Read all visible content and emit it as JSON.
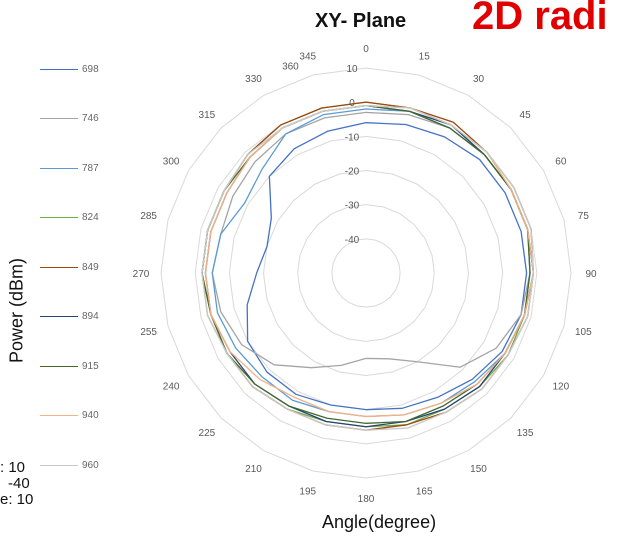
{
  "banner": "2D radi",
  "chart_data": {
    "type": "polar-line",
    "title": "XY- Plane",
    "xlabel": "Angle(degree)",
    "ylabel": "Power (dBm)",
    "angle_ticks": [
      "0",
      "15",
      "30",
      "45",
      "60",
      "75",
      "90",
      "105",
      "120",
      "135",
      "150",
      "165",
      "180",
      "195",
      "210",
      "225",
      "240",
      "255",
      "270",
      "285",
      "300",
      "315",
      "330",
      "345",
      "360"
    ],
    "radial_ticks": [
      "10",
      "0",
      "-10",
      "-20",
      "-30",
      "-40"
    ],
    "rlim": [
      -50,
      10
    ],
    "angles": [
      0,
      15,
      30,
      45,
      60,
      75,
      90,
      105,
      120,
      135,
      150,
      165,
      180,
      195,
      210,
      225,
      240,
      255,
      270,
      285,
      300,
      315,
      330,
      345
    ],
    "series": [
      {
        "name": "698",
        "color": "#4472c4",
        "values": [
          -6,
          -5,
          -4,
          -3,
          -3,
          -3,
          -3,
          -3,
          -4,
          -6,
          -8,
          -9,
          -10,
          -10,
          -9,
          -9,
          -10,
          -14,
          -18,
          -20,
          -18,
          -10,
          -8,
          -7
        ]
      },
      {
        "name": "746",
        "color": "#a5a5a5",
        "values": [
          -3,
          -2,
          -1,
          -1,
          -1,
          -1,
          -2,
          -3,
          -6,
          -11,
          -20,
          -24,
          -25,
          -22,
          -18,
          -12,
          -8,
          -6,
          -5,
          -6,
          -5,
          -4,
          -3,
          -3
        ]
      },
      {
        "name": "787",
        "color": "#5b9bd5",
        "values": [
          -2,
          -1,
          -1,
          -1,
          -1,
          -1,
          -2,
          -2,
          -3,
          -5,
          -6,
          -7,
          -8,
          -8,
          -7,
          -7,
          -6,
          -5,
          -5,
          -6,
          -9,
          -7,
          -3,
          -2
        ]
      },
      {
        "name": "824",
        "color": "#70ad47",
        "values": [
          0,
          0,
          0,
          -1,
          -1,
          -1,
          -1,
          -2,
          -2,
          -3,
          -4,
          -4,
          -5,
          -5,
          -4,
          -3,
          -3,
          -2,
          -2,
          -2,
          -2,
          -1,
          0,
          0
        ]
      },
      {
        "name": "849",
        "color": "#9e480e",
        "values": [
          0,
          0,
          1,
          0,
          0,
          0,
          -1,
          -1,
          -2,
          -2,
          -3,
          -4,
          -4,
          -4,
          -4,
          -3,
          -3,
          -3,
          -2,
          -2,
          -2,
          -1,
          0,
          0
        ]
      },
      {
        "name": "894",
        "color": "#264478",
        "values": [
          -1,
          -1,
          0,
          -1,
          -1,
          -1,
          -1,
          -2,
          -3,
          -3,
          -4,
          -5,
          -5,
          -5,
          -5,
          -4,
          -4,
          -3,
          -3,
          -3,
          -3,
          -2,
          -1,
          -1
        ]
      },
      {
        "name": "915",
        "color": "#43682b",
        "values": [
          -1,
          -1,
          -1,
          -1,
          -1,
          -1,
          -2,
          -2,
          -3,
          -4,
          -5,
          -5,
          -6,
          -6,
          -5,
          -4,
          -3,
          -3,
          -2,
          -2,
          -2,
          -2,
          -1,
          -1
        ]
      },
      {
        "name": "940",
        "color": "#f4b183",
        "values": [
          -1,
          0,
          0,
          0,
          -1,
          -1,
          -1,
          -2,
          -3,
          -4,
          -6,
          -7,
          -8,
          -8,
          -8,
          -6,
          -4,
          -3,
          -3,
          -3,
          -3,
          -2,
          -1,
          -1
        ]
      },
      {
        "name": "960",
        "color": "#c9c9c9",
        "values": [
          -1,
          0,
          0,
          0,
          0,
          0,
          -1,
          -1,
          -2,
          -2,
          -3,
          -3,
          -4,
          -4,
          -4,
          -3,
          -3,
          -2,
          -2,
          -2,
          -2,
          -1,
          -1,
          -1
        ]
      }
    ]
  },
  "scale_notes": [
    ": 10",
    "-40",
    "e: 10"
  ]
}
